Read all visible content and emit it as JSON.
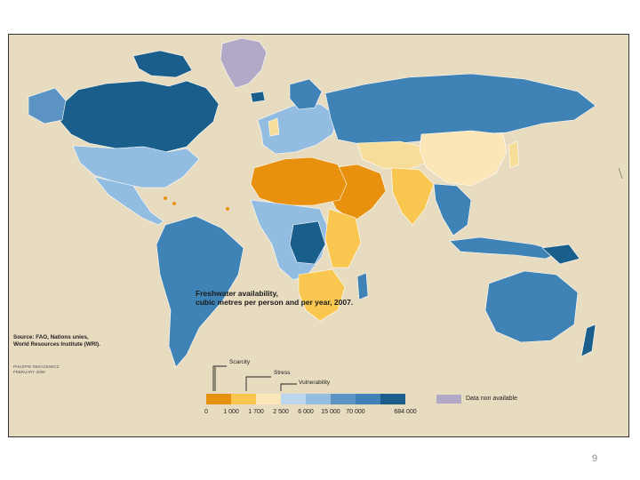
{
  "legend": {
    "title_line1": "Freshwater availability,",
    "title_line2": "cubic metres per person and per year, 2007.",
    "scarcity": "Scarcity",
    "stress": "Stress",
    "vulnerability": "Vulnerability",
    "no_data": "Data non available",
    "no_data_color": "#b2a9c6",
    "scale_colors": [
      "#e8910f",
      "#f9c74f",
      "#fbe6b8",
      "#bcd6ee",
      "#93bce1",
      "#5b93c3",
      "#3f82b6",
      "#1a5f8c"
    ],
    "scale_ticks": [
      "0",
      "1 000",
      "1 700",
      "2 500",
      "6 000",
      "15 000",
      "70 000",
      "684 000"
    ]
  },
  "source": {
    "line1": "Source: FAO, Nations unies,",
    "line2": "World Resources Institute (WRI)."
  },
  "credit": {
    "line1": "PHILIPPE REKACEWICZ",
    "line2": "FEBRUARY 2008"
  },
  "page_number": "9"
}
